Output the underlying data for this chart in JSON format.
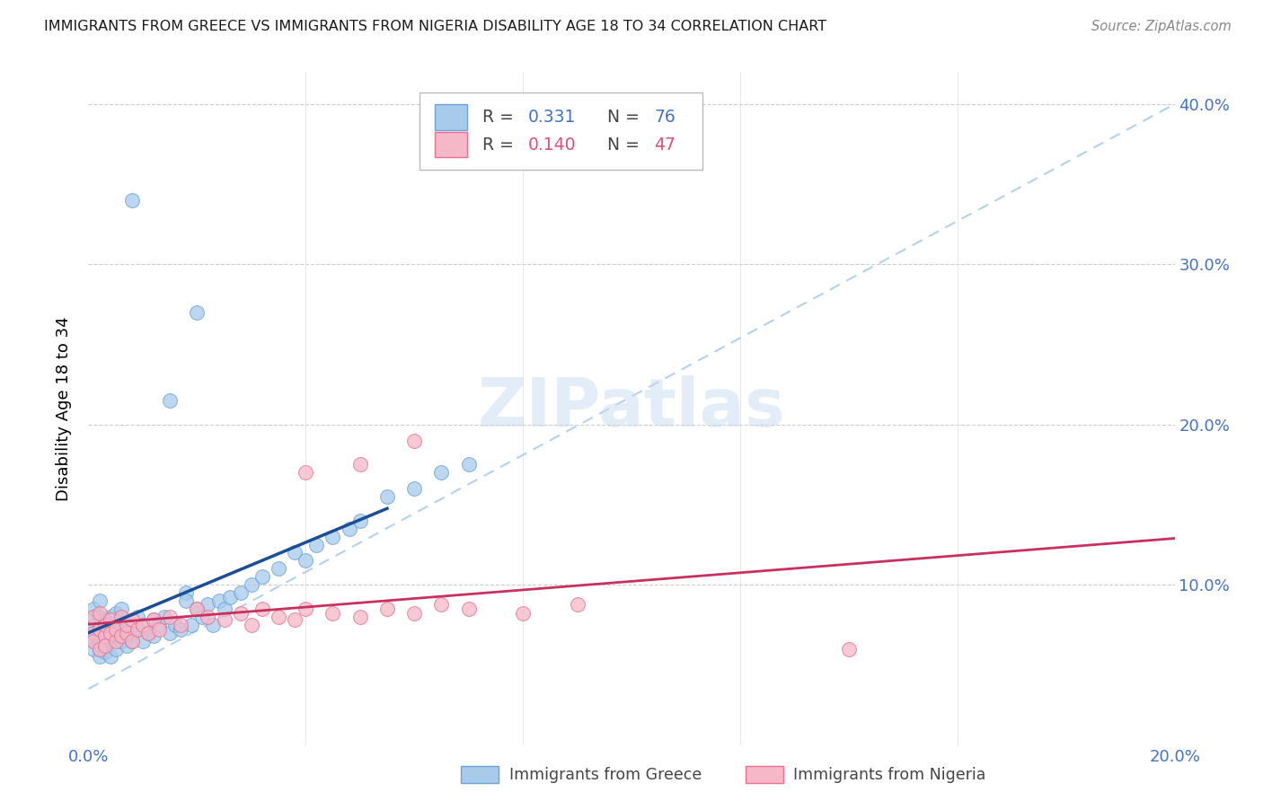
{
  "title": "IMMIGRANTS FROM GREECE VS IMMIGRANTS FROM NIGERIA DISABILITY AGE 18 TO 34 CORRELATION CHART",
  "source": "Source: ZipAtlas.com",
  "ylabel_label": "Disability Age 18 to 34",
  "xlim": [
    0.0,
    0.2
  ],
  "ylim": [
    0.0,
    0.42
  ],
  "greece_color": "#A8CAEB",
  "greece_edge_color": "#6BA3D6",
  "nigeria_color": "#F5B8C8",
  "nigeria_edge_color": "#E87090",
  "greece_line_color": "#1A4E96",
  "nigeria_line_color": "#C83060",
  "dash_color": "#AACCEE",
  "R_greece": 0.331,
  "N_greece": 76,
  "R_nigeria": 0.14,
  "N_nigeria": 47,
  "watermark": "ZIPatlas",
  "greece_R_color": "#4472C4",
  "nigeria_R_color": "#E05070",
  "greece_x": [
    0.001,
    0.001,
    0.001,
    0.001,
    0.001,
    0.001,
    0.002,
    0.002,
    0.002,
    0.002,
    0.002,
    0.002,
    0.002,
    0.003,
    0.003,
    0.003,
    0.003,
    0.003,
    0.004,
    0.004,
    0.004,
    0.004,
    0.004,
    0.005,
    0.005,
    0.005,
    0.005,
    0.006,
    0.006,
    0.006,
    0.006,
    0.007,
    0.007,
    0.007,
    0.008,
    0.008,
    0.008,
    0.009,
    0.009,
    0.01,
    0.01,
    0.011,
    0.012,
    0.012,
    0.013,
    0.014,
    0.015,
    0.016,
    0.017,
    0.018,
    0.018,
    0.019,
    0.02,
    0.021,
    0.022,
    0.023,
    0.024,
    0.025,
    0.026,
    0.028,
    0.03,
    0.032,
    0.035,
    0.038,
    0.04,
    0.042,
    0.045,
    0.048,
    0.05,
    0.055,
    0.06,
    0.065,
    0.07,
    0.02,
    0.015,
    0.008
  ],
  "greece_y": [
    0.065,
    0.07,
    0.075,
    0.08,
    0.06,
    0.085,
    0.07,
    0.065,
    0.075,
    0.08,
    0.055,
    0.09,
    0.06,
    0.068,
    0.072,
    0.078,
    0.062,
    0.058,
    0.07,
    0.075,
    0.065,
    0.08,
    0.055,
    0.068,
    0.072,
    0.06,
    0.082,
    0.07,
    0.065,
    0.075,
    0.085,
    0.068,
    0.072,
    0.062,
    0.07,
    0.075,
    0.065,
    0.072,
    0.08,
    0.075,
    0.065,
    0.07,
    0.078,
    0.068,
    0.075,
    0.08,
    0.07,
    0.075,
    0.072,
    0.095,
    0.09,
    0.075,
    0.085,
    0.08,
    0.088,
    0.075,
    0.09,
    0.085,
    0.092,
    0.095,
    0.1,
    0.105,
    0.11,
    0.12,
    0.115,
    0.125,
    0.13,
    0.135,
    0.14,
    0.155,
    0.16,
    0.17,
    0.175,
    0.27,
    0.215,
    0.34
  ],
  "nigeria_x": [
    0.001,
    0.001,
    0.001,
    0.002,
    0.002,
    0.002,
    0.003,
    0.003,
    0.003,
    0.004,
    0.004,
    0.005,
    0.005,
    0.006,
    0.006,
    0.007,
    0.007,
    0.008,
    0.008,
    0.009,
    0.01,
    0.011,
    0.012,
    0.013,
    0.015,
    0.017,
    0.02,
    0.022,
    0.025,
    0.028,
    0.03,
    0.032,
    0.035,
    0.038,
    0.04,
    0.045,
    0.05,
    0.055,
    0.06,
    0.065,
    0.07,
    0.08,
    0.09,
    0.14,
    0.04,
    0.05,
    0.06
  ],
  "nigeria_y": [
    0.07,
    0.065,
    0.08,
    0.072,
    0.06,
    0.082,
    0.068,
    0.075,
    0.062,
    0.07,
    0.078,
    0.065,
    0.072,
    0.068,
    0.08,
    0.07,
    0.075,
    0.065,
    0.078,
    0.072,
    0.075,
    0.07,
    0.078,
    0.072,
    0.08,
    0.075,
    0.085,
    0.08,
    0.078,
    0.082,
    0.075,
    0.085,
    0.08,
    0.078,
    0.085,
    0.082,
    0.08,
    0.085,
    0.082,
    0.088,
    0.085,
    0.082,
    0.088,
    0.06,
    0.17,
    0.175,
    0.19
  ]
}
